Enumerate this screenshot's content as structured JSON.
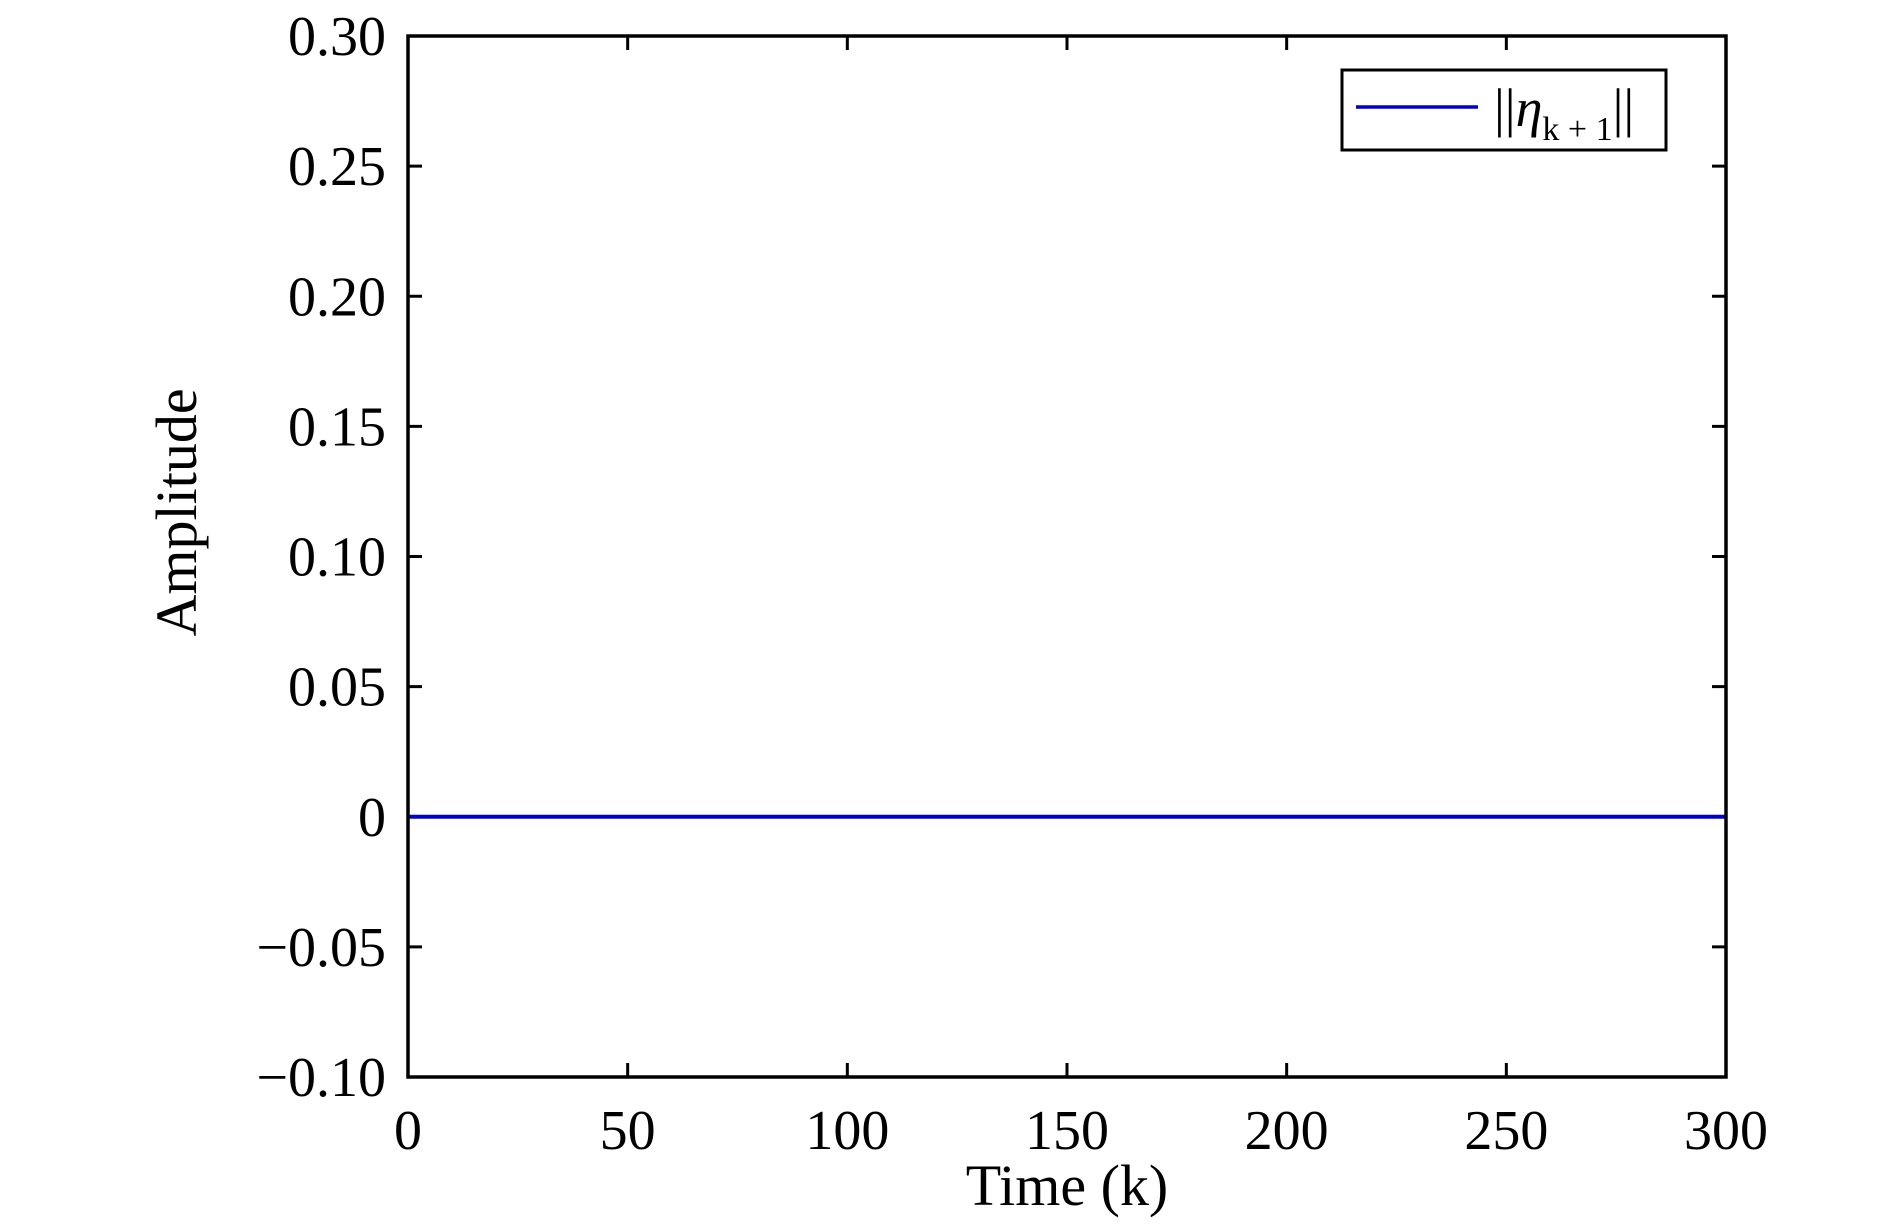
{
  "chart_data": {
    "type": "line",
    "title": "",
    "xlabel": "Time (k)",
    "ylabel": "Amplitude",
    "xlim": [
      0,
      300
    ],
    "ylim": [
      -0.1,
      0.3
    ],
    "x_ticks": [
      0,
      50,
      100,
      150,
      200,
      250,
      300
    ],
    "x_tick_labels": [
      "0",
      "50",
      "100",
      "150",
      "200",
      "250",
      "300"
    ],
    "y_ticks": [
      0.3,
      0.25,
      0.2,
      0.15,
      0.1,
      0.05,
      0,
      -0.05,
      -0.1
    ],
    "y_tick_labels": [
      "0.30",
      "0.25",
      "0.20",
      "0.15",
      "0.10",
      "0.05",
      "0",
      "−0.05",
      "−0.10"
    ],
    "grid": false,
    "legend_position": "top-right",
    "series": [
      {
        "name": "||ηk + 1||",
        "legend": {
          "bar_left": "||",
          "symbol": "η",
          "subscript": "k + 1",
          "bar_right": "||"
        },
        "color": "#0000cc",
        "x": [
          0,
          300
        ],
        "y": [
          0,
          0
        ]
      }
    ]
  }
}
